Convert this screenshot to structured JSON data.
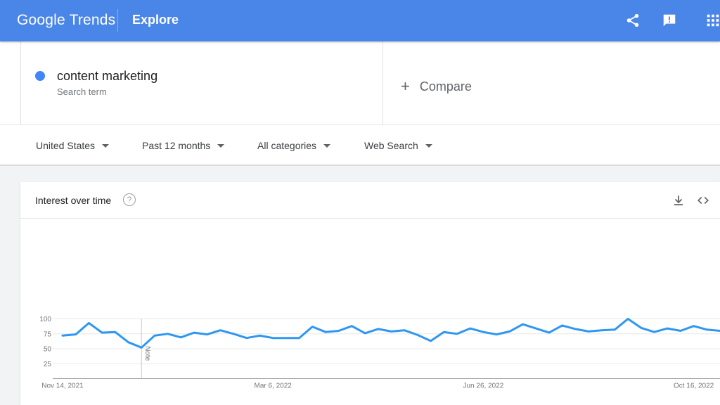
{
  "header": {
    "logo": "Google Trends",
    "title": "Explore",
    "share_icon": "share-icon",
    "feedback_icon": "feedback-icon",
    "apps_icon": "apps-grid-icon"
  },
  "search": {
    "term": "content marketing",
    "term_type": "Search term",
    "compare_label": "Compare",
    "term_color": "#4285f4"
  },
  "filters": {
    "region": "United States",
    "time": "Past 12 months",
    "category": "All categories",
    "search_type": "Web Search"
  },
  "card": {
    "title": "Interest over time",
    "help_icon": "help-icon",
    "download_icon": "download-icon",
    "embed_icon": "embed-code-icon"
  },
  "chart_data": {
    "type": "line",
    "yticks": [
      25,
      50,
      75,
      100
    ],
    "ylim": [
      0,
      100
    ],
    "xtick_labels": [
      "Nov 14, 2021",
      "Mar 6, 2022",
      "Jun 26, 2022",
      "Oct 16, 2022"
    ],
    "xtick_index": [
      0,
      16,
      32,
      48
    ],
    "note_label": "Note",
    "note_index": 6,
    "series": [
      {
        "color": "#2e97f2",
        "values": [
          72,
          74,
          93,
          77,
          78,
          61,
          52,
          72,
          75,
          69,
          77,
          74,
          81,
          75,
          68,
          72,
          68,
          68,
          68,
          87,
          78,
          80,
          88,
          76,
          83,
          79,
          81,
          73,
          63,
          78,
          75,
          84,
          78,
          74,
          79,
          91,
          84,
          77,
          89,
          83,
          79,
          81,
          82,
          100,
          85,
          78,
          84,
          80,
          88,
          82,
          80
        ]
      }
    ]
  }
}
